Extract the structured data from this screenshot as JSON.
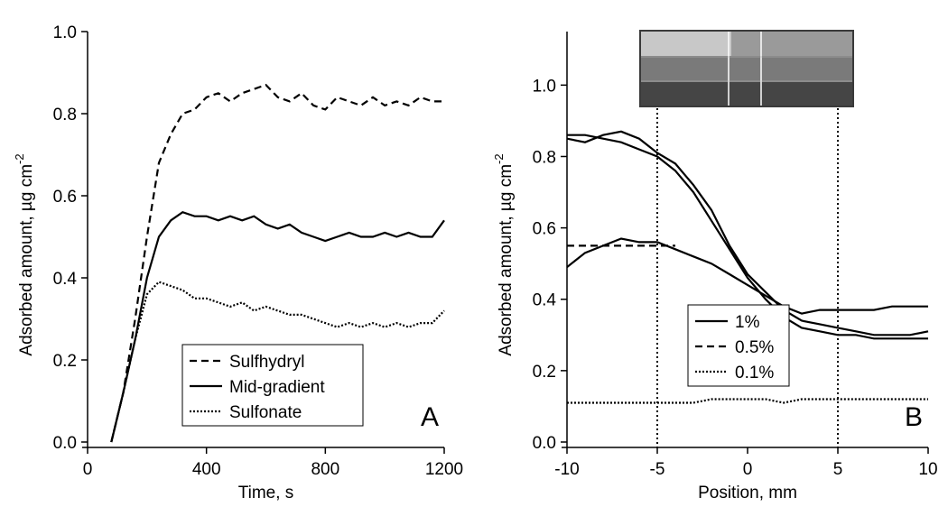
{
  "chart_data": [
    {
      "type": "line",
      "panel_label": "A",
      "xlabel": "Time, s",
      "ylabel": "Adsorbed amount, µg cm",
      "ylabel_sup": "-2",
      "xlim": [
        0,
        1200
      ],
      "xticks": [
        0,
        400,
        800,
        1200
      ],
      "ylim": [
        0,
        1.0
      ],
      "yticks": [
        {
          "value": 0,
          "label": "0.0"
        },
        0.2,
        0.4,
        0.6,
        0.8,
        {
          "value": 1,
          "label": "1.0"
        }
      ],
      "legend": "lower right",
      "x": [
        80,
        120,
        160,
        200,
        240,
        280,
        320,
        360,
        400,
        440,
        480,
        520,
        560,
        600,
        640,
        680,
        720,
        760,
        800,
        840,
        880,
        920,
        960,
        1000,
        1040,
        1080,
        1120,
        1160,
        1200
      ],
      "series": [
        {
          "name": "Sulfhydryl",
          "color": "#000000",
          "dash": "dashed",
          "values": [
            0,
            0.12,
            0.3,
            0.5,
            0.68,
            0.75,
            0.8,
            0.81,
            0.84,
            0.85,
            0.83,
            0.85,
            0.86,
            0.87,
            0.84,
            0.83,
            0.85,
            0.82,
            0.81,
            0.84,
            0.83,
            0.82,
            0.84,
            0.82,
            0.83,
            0.82,
            0.84,
            0.83,
            0.83
          ]
        },
        {
          "name": "Mid-gradient",
          "color": "#000000",
          "dash": "solid",
          "values": [
            0,
            0.12,
            0.25,
            0.4,
            0.5,
            0.54,
            0.56,
            0.55,
            0.55,
            0.54,
            0.55,
            0.54,
            0.55,
            0.53,
            0.52,
            0.53,
            0.51,
            0.5,
            0.49,
            0.5,
            0.51,
            0.5,
            0.5,
            0.51,
            0.5,
            0.51,
            0.5,
            0.5,
            0.54
          ]
        },
        {
          "name": "Sulfonate",
          "color": "#000000",
          "dash": "dotted",
          "values": [
            0,
            0.12,
            0.25,
            0.36,
            0.39,
            0.38,
            0.37,
            0.35,
            0.35,
            0.34,
            0.33,
            0.34,
            0.32,
            0.33,
            0.32,
            0.31,
            0.31,
            0.3,
            0.29,
            0.28,
            0.29,
            0.28,
            0.29,
            0.28,
            0.29,
            0.28,
            0.29,
            0.29,
            0.32
          ]
        }
      ]
    },
    {
      "type": "line",
      "panel_label": "B",
      "xlabel": "Position, mm",
      "ylabel": "Adsorbed amount, µg cm",
      "ylabel_sup": "-2",
      "xlim": [
        -10,
        10
      ],
      "xticks": [
        -10,
        -5,
        0,
        5,
        10
      ],
      "ylim": [
        0,
        1.15
      ],
      "yticks": [
        {
          "value": 0,
          "label": "0.0"
        },
        0.2,
        0.4,
        0.6,
        0.8,
        {
          "value": 1,
          "label": "1.0"
        }
      ],
      "legend": "lower center",
      "vlines": [
        -5,
        5
      ],
      "x": [
        -10,
        -9,
        -8,
        -7,
        -6,
        -5,
        -4,
        -3,
        -2,
        -1,
        0,
        1,
        2,
        3,
        4,
        5,
        6,
        7,
        8,
        9,
        10
      ],
      "series": [
        {
          "name": "1%",
          "color": "#000000",
          "dash": "solid",
          "values": [
            0.86,
            0.86,
            0.85,
            0.84,
            0.82,
            0.8,
            0.76,
            0.7,
            0.62,
            0.54,
            0.46,
            0.4,
            0.35,
            0.32,
            0.31,
            0.3,
            0.3,
            0.29,
            0.29,
            0.29,
            0.29
          ]
        },
        {
          "name": "0.5%",
          "color": "#000000",
          "dash": "dashed",
          "values": [
            0.55,
            0.55,
            0.55,
            0.55,
            0.55,
            0.55,
            0.55,
            null,
            null,
            null,
            null,
            null,
            null,
            null,
            null,
            null,
            null,
            null,
            null,
            null,
            null
          ]
        },
        {
          "name": "0.1%",
          "color": "#000000",
          "dash": "dotted",
          "values": [
            0.11,
            0.11,
            0.11,
            0.11,
            0.11,
            0.11,
            0.11,
            0.11,
            0.12,
            0.12,
            0.12,
            0.12,
            0.11,
            0.12,
            0.12,
            0.12,
            0.12,
            0.12,
            0.12,
            0.12,
            0.12
          ]
        },
        {
          "color": "#000000",
          "dash": "solid",
          "values": [
            0.85,
            0.84,
            0.86,
            0.87,
            0.85,
            0.81,
            0.78,
            0.72,
            0.65,
            0.55,
            0.47,
            0.42,
            0.37,
            0.34,
            0.33,
            0.32,
            0.31,
            0.3,
            0.3,
            0.3,
            0.31
          ]
        },
        {
          "color": "#000000",
          "dash": "solid",
          "values": [
            0.49,
            0.53,
            0.55,
            0.57,
            0.56,
            0.56,
            0.54,
            0.52,
            0.5,
            0.47,
            0.44,
            0.41,
            0.38,
            0.36,
            0.37,
            0.37,
            0.37,
            0.37,
            0.38,
            0.38,
            0.38
          ]
        }
      ]
    }
  ]
}
